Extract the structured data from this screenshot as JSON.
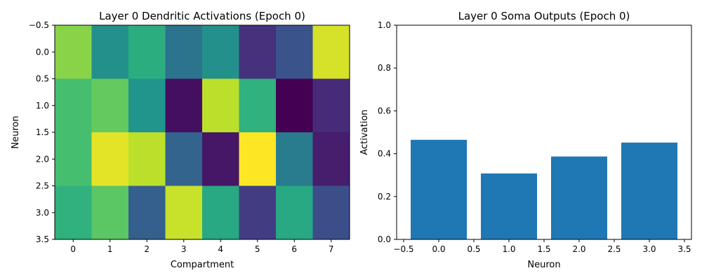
{
  "colormap": "viridis",
  "bar_color": "#1f77b4",
  "chart_data": [
    {
      "type": "heatmap",
      "title": "Layer 0 Dendritic Activations (Epoch 0)",
      "xlabel": "Compartment",
      "ylabel": "Neuron",
      "x_ticks": [
        "0",
        "1",
        "2",
        "3",
        "4",
        "5",
        "6",
        "7"
      ],
      "y_ticks": [
        "−0.5",
        "0.0",
        "0.5",
        "1.0",
        "1.5",
        "2.0",
        "2.5",
        "3.0",
        "3.5"
      ],
      "xlim": [
        -0.5,
        7.5
      ],
      "ylim": [
        3.5,
        -0.5
      ],
      "vmin": 0,
      "vmax": 1,
      "values": [
        [
          0.82,
          0.5,
          0.62,
          0.38,
          0.5,
          0.14,
          0.26,
          0.94
        ],
        [
          0.7,
          0.76,
          0.52,
          0.04,
          0.9,
          0.64,
          0.0,
          0.12
        ],
        [
          0.7,
          0.96,
          0.9,
          0.32,
          0.06,
          1.0,
          0.42,
          0.08
        ],
        [
          0.64,
          0.74,
          0.3,
          0.92,
          0.6,
          0.18,
          0.6,
          0.24
        ]
      ]
    },
    {
      "type": "bar",
      "title": "Layer 0 Soma Outputs (Epoch 0)",
      "xlabel": "Neuron",
      "ylabel": "Activation",
      "x": [
        0,
        1,
        2,
        3
      ],
      "values": [
        0.465,
        0.308,
        0.387,
        0.452
      ],
      "xlim": [
        -0.6,
        3.6
      ],
      "ylim": [
        0,
        1
      ],
      "x_ticks": [
        "−0.5",
        "0.0",
        "0.5",
        "1.0",
        "1.5",
        "2.0",
        "2.5",
        "3.0",
        "3.5"
      ],
      "y_ticks": [
        "0.0",
        "0.2",
        "0.4",
        "0.6",
        "0.8",
        "1.0"
      ]
    }
  ]
}
